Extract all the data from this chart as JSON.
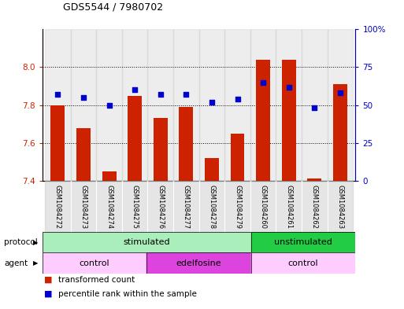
{
  "title": "GDS5544 / 7980702",
  "samples": [
    "GSM1084272",
    "GSM1084273",
    "GSM1084274",
    "GSM1084275",
    "GSM1084276",
    "GSM1084277",
    "GSM1084278",
    "GSM1084279",
    "GSM1084260",
    "GSM1084261",
    "GSM1084262",
    "GSM1084263"
  ],
  "red_values": [
    7.8,
    7.68,
    7.45,
    7.85,
    7.73,
    7.79,
    7.52,
    7.65,
    8.04,
    8.04,
    7.41,
    7.91
  ],
  "blue_values_pct": [
    57,
    55,
    50,
    60,
    57,
    57,
    52,
    54,
    65,
    62,
    48,
    58
  ],
  "ylim_left": [
    7.4,
    8.2
  ],
  "ylim_right": [
    0,
    100
  ],
  "yticks_left": [
    7.4,
    7.6,
    7.8,
    8.0
  ],
  "yticks_right": [
    0,
    25,
    50,
    75,
    100
  ],
  "ytick_right_labels": [
    "0",
    "25",
    "50",
    "75",
    "100%"
  ],
  "bar_color": "#cc2200",
  "dot_color": "#0000cc",
  "bar_bottom": 7.4,
  "protocol_groups": [
    {
      "label": "stimulated",
      "start": 0,
      "end": 8,
      "color": "#aaeebb"
    },
    {
      "label": "unstimulated",
      "start": 8,
      "end": 12,
      "color": "#22cc44"
    }
  ],
  "agent_groups": [
    {
      "label": "control",
      "start": 0,
      "end": 4,
      "color": "#ffccff"
    },
    {
      "label": "edelfosine",
      "start": 4,
      "end": 8,
      "color": "#dd44dd"
    },
    {
      "label": "control",
      "start": 8,
      "end": 12,
      "color": "#ffccff"
    }
  ],
  "legend_red": "transformed count",
  "legend_blue": "percentile rank within the sample",
  "tick_color_left": "#cc2200",
  "tick_color_right": "#0000cc",
  "col_bg_color": "#cccccc",
  "col_bg_alpha": 0.35
}
